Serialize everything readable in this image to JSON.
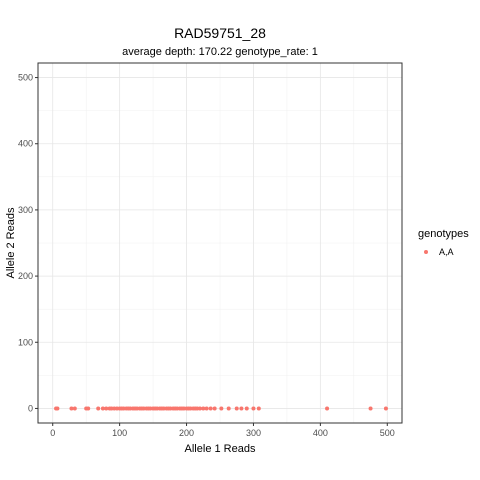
{
  "chart_data": {
    "type": "scatter",
    "title": "RAD59751_28",
    "subtitle": "average depth:  170.22  genotype_rate:  1",
    "xlabel": "Allele 1 Reads",
    "ylabel": "Allele 2 Reads",
    "xlim": [
      -22,
      522
    ],
    "ylim": [
      -22,
      522
    ],
    "xticks": [
      0,
      100,
      200,
      300,
      400,
      500
    ],
    "yticks": [
      0,
      100,
      200,
      300,
      400,
      500
    ],
    "xtick_labels": [
      "0",
      "100",
      "200",
      "300",
      "400",
      "500"
    ],
    "ytick_labels": [
      "0",
      "100",
      "200",
      "300",
      "400",
      "500"
    ],
    "grid": true,
    "legend": {
      "title": "genotypes",
      "position": "right"
    },
    "series": [
      {
        "name": "A,A",
        "color": "#F8766D",
        "x": [
          5,
          7,
          28,
          33,
          50,
          53,
          68,
          75,
          80,
          85,
          88,
          92,
          96,
          100,
          103,
          106,
          110,
          113,
          116,
          120,
          123,
          126,
          130,
          133,
          136,
          140,
          143,
          146,
          150,
          153,
          156,
          160,
          163,
          166,
          170,
          173,
          176,
          180,
          183,
          186,
          190,
          193,
          196,
          200,
          203,
          206,
          210,
          213,
          216,
          220,
          225,
          230,
          236,
          242,
          252,
          263,
          275,
          282,
          290,
          300,
          308,
          410,
          475,
          498
        ],
        "y": [
          0,
          0,
          0,
          0,
          0,
          0,
          0,
          0,
          0,
          0,
          0,
          0,
          0,
          0,
          0,
          0,
          0,
          0,
          0,
          0,
          0,
          0,
          0,
          0,
          0,
          0,
          0,
          0,
          0,
          0,
          0,
          0,
          0,
          0,
          0,
          0,
          0,
          0,
          0,
          0,
          0,
          0,
          0,
          0,
          0,
          0,
          0,
          0,
          0,
          0,
          0,
          0,
          0,
          0,
          0,
          0,
          0,
          0,
          0,
          0,
          0,
          0,
          0,
          0
        ]
      }
    ]
  }
}
